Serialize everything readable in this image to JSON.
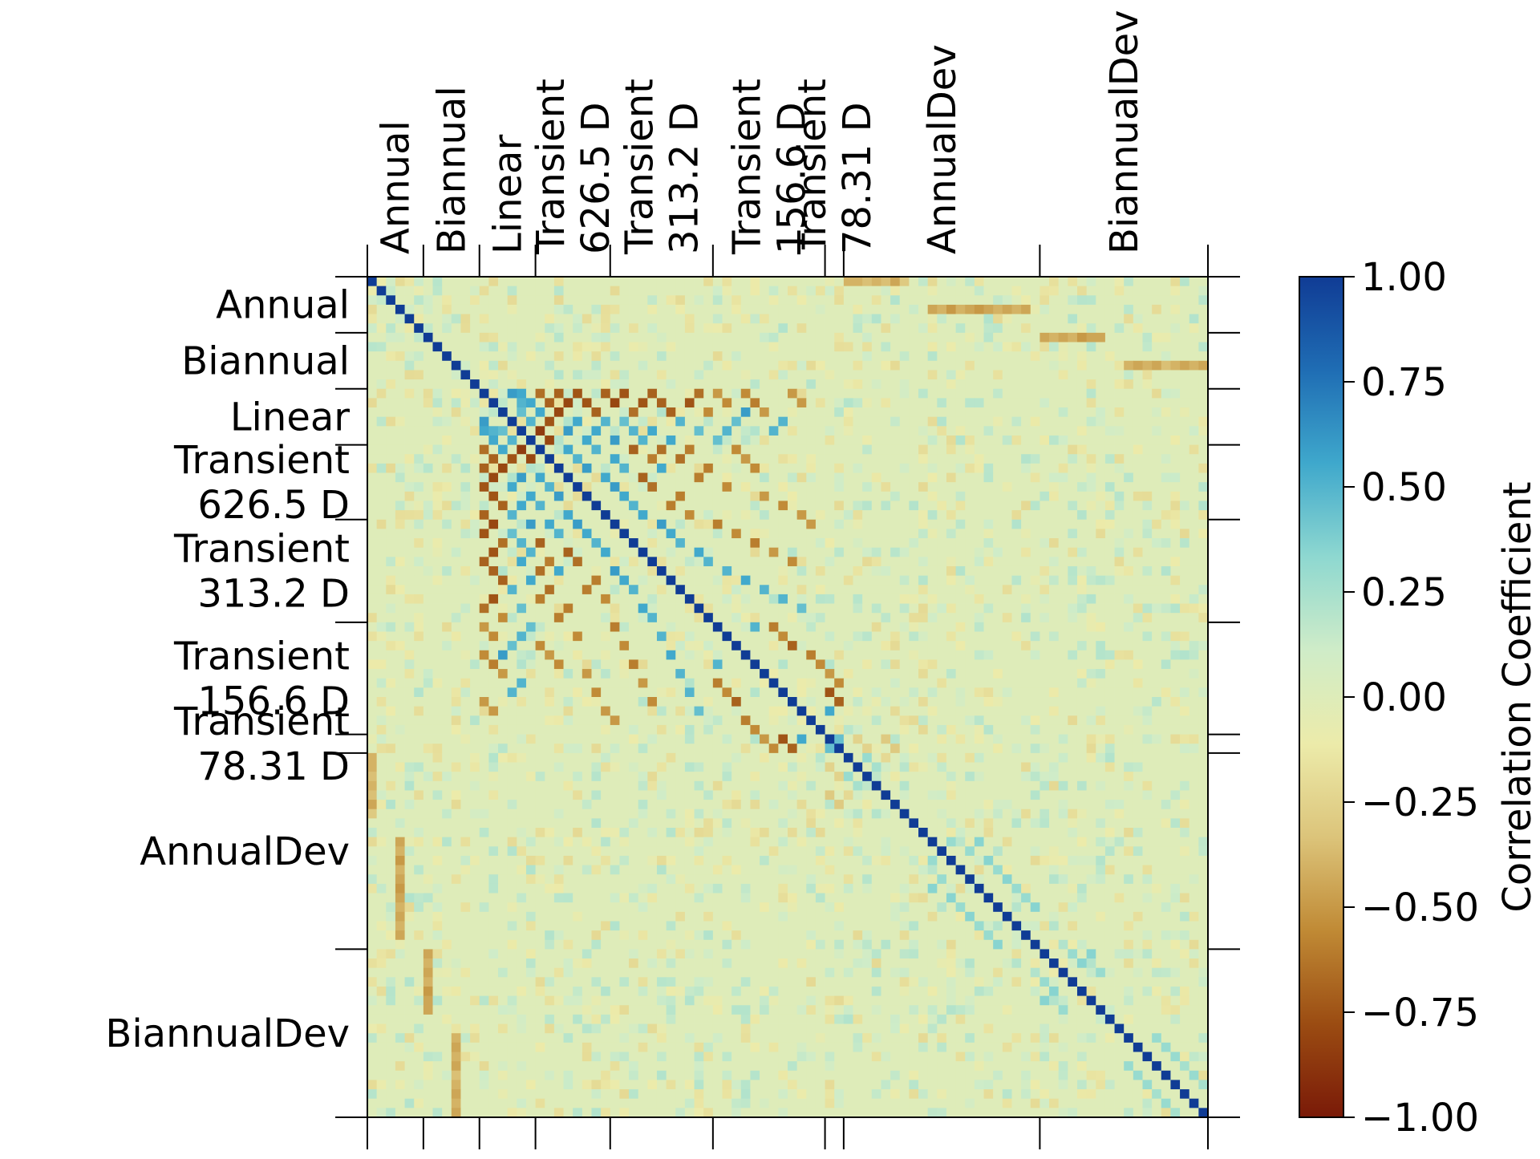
{
  "chart_data": {
    "type": "heatmap",
    "title": "",
    "n": 90,
    "groups": [
      {
        "label": "Annual",
        "start": 0,
        "end": 6
      },
      {
        "label": "Biannual",
        "start": 6,
        "end": 12
      },
      {
        "label": "Linear",
        "start": 12,
        "end": 18
      },
      {
        "label": "Transient\n626.5 D",
        "start": 18,
        "end": 26
      },
      {
        "label": "Transient\n313.2 D",
        "start": 26,
        "end": 37
      },
      {
        "label": "Transient\n156.6 D",
        "start": 37,
        "end": 49
      },
      {
        "label": "Transient\n78.31 D",
        "start": 49,
        "end": 51
      },
      {
        "label": "AnnualDev",
        "start": 51,
        "end": 72
      },
      {
        "label": "BiannualDev",
        "start": 72,
        "end": 90
      }
    ],
    "colorbar": {
      "label": "Correlation Coefficient",
      "min": -1.0,
      "max": 1.0,
      "ticks": [
        1.0,
        0.75,
        0.5,
        0.25,
        0.0,
        -0.25,
        -0.5,
        -0.75,
        -1.0
      ],
      "tick_labels": [
        "1.00",
        "0.75",
        "0.50",
        "0.25",
        "0.00",
        "−0.25",
        "−0.50",
        "−0.75",
        "−1.00"
      ]
    },
    "colormap": [
      "#7a1a08",
      "#9b4c12",
      "#c08a35",
      "#dcc47a",
      "#ecebaa",
      "#cfecc8",
      "#8ed8d0",
      "#3fa8cc",
      "#1f6db4",
      "#103c95"
    ],
    "diagonal": 1.0,
    "strong_pairs": [
      {
        "i": 0,
        "j": 51,
        "value": -0.4
      },
      {
        "i": 0,
        "j": 52,
        "value": -0.4
      },
      {
        "i": 0,
        "j": 53,
        "value": -0.35
      },
      {
        "i": 0,
        "j": 54,
        "value": -0.4
      },
      {
        "i": 0,
        "j": 55,
        "value": -0.35
      },
      {
        "i": 0,
        "j": 56,
        "value": -0.45
      },
      {
        "i": 0,
        "j": 57,
        "value": -0.3
      },
      {
        "i": 3,
        "j": 60,
        "value": -0.45
      },
      {
        "i": 3,
        "j": 61,
        "value": -0.4
      },
      {
        "i": 3,
        "j": 62,
        "value": -0.5
      },
      {
        "i": 3,
        "j": 63,
        "value": -0.4
      },
      {
        "i": 3,
        "j": 64,
        "value": -0.45
      },
      {
        "i": 3,
        "j": 65,
        "value": -0.5
      },
      {
        "i": 3,
        "j": 66,
        "value": -0.45
      },
      {
        "i": 3,
        "j": 67,
        "value": -0.4
      },
      {
        "i": 3,
        "j": 68,
        "value": -0.45
      },
      {
        "i": 3,
        "j": 69,
        "value": -0.4
      },
      {
        "i": 3,
        "j": 70,
        "value": -0.45
      },
      {
        "i": 6,
        "j": 72,
        "value": -0.45
      },
      {
        "i": 6,
        "j": 73,
        "value": -0.4
      },
      {
        "i": 6,
        "j": 74,
        "value": -0.45
      },
      {
        "i": 6,
        "j": 75,
        "value": -0.4
      },
      {
        "i": 6,
        "j": 76,
        "value": -0.5
      },
      {
        "i": 6,
        "j": 77,
        "value": -0.45
      },
      {
        "i": 6,
        "j": 78,
        "value": -0.45
      },
      {
        "i": 9,
        "j": 81,
        "value": -0.4
      },
      {
        "i": 9,
        "j": 82,
        "value": -0.45
      },
      {
        "i": 9,
        "j": 83,
        "value": -0.4
      },
      {
        "i": 9,
        "j": 84,
        "value": -0.45
      },
      {
        "i": 9,
        "j": 85,
        "value": -0.35
      },
      {
        "i": 9,
        "j": 86,
        "value": -0.4
      },
      {
        "i": 9,
        "j": 87,
        "value": -0.45
      },
      {
        "i": 9,
        "j": 88,
        "value": -0.4
      },
      {
        "i": 9,
        "j": 89,
        "value": -0.45
      },
      {
        "i": 12,
        "j": 15,
        "value": 0.6
      },
      {
        "i": 12,
        "j": 16,
        "value": 0.55
      },
      {
        "i": 12,
        "j": 18,
        "value": -0.65
      },
      {
        "i": 12,
        "j": 20,
        "value": -0.7
      },
      {
        "i": 12,
        "j": 22,
        "value": -0.75
      },
      {
        "i": 12,
        "j": 25,
        "value": -0.7
      },
      {
        "i": 12,
        "j": 27,
        "value": -0.75
      },
      {
        "i": 12,
        "j": 30,
        "value": -0.7
      },
      {
        "i": 12,
        "j": 35,
        "value": -0.65
      },
      {
        "i": 12,
        "j": 37,
        "value": -0.5
      },
      {
        "i": 12,
        "j": 40,
        "value": -0.55
      },
      {
        "i": 12,
        "j": 45,
        "value": -0.5
      },
      {
        "i": 13,
        "j": 16,
        "value": 0.5
      },
      {
        "i": 13,
        "j": 17,
        "value": 0.55
      },
      {
        "i": 13,
        "j": 19,
        "value": -0.7
      },
      {
        "i": 13,
        "j": 21,
        "value": -0.8
      },
      {
        "i": 13,
        "j": 23,
        "value": -0.75
      },
      {
        "i": 13,
        "j": 26,
        "value": -0.8
      },
      {
        "i": 13,
        "j": 29,
        "value": -0.75
      },
      {
        "i": 13,
        "j": 31,
        "value": -0.7
      },
      {
        "i": 13,
        "j": 34,
        "value": -0.75
      },
      {
        "i": 13,
        "j": 38,
        "value": -0.55
      },
      {
        "i": 13,
        "j": 41,
        "value": -0.6
      },
      {
        "i": 13,
        "j": 46,
        "value": -0.5
      },
      {
        "i": 14,
        "j": 16,
        "value": 0.45
      },
      {
        "i": 14,
        "j": 18,
        "value": 0.55
      },
      {
        "i": 14,
        "j": 20,
        "value": -0.8
      },
      {
        "i": 14,
        "j": 24,
        "value": -0.7
      },
      {
        "i": 14,
        "j": 28,
        "value": -0.65
      },
      {
        "i": 14,
        "j": 32,
        "value": -0.7
      },
      {
        "i": 14,
        "j": 36,
        "value": -0.55
      },
      {
        "i": 14,
        "j": 40,
        "value": 0.6
      },
      {
        "i": 14,
        "j": 42,
        "value": -0.5
      },
      {
        "i": 15,
        "j": 17,
        "value": 0.5
      },
      {
        "i": 15,
        "j": 19,
        "value": -0.75
      },
      {
        "i": 15,
        "j": 22,
        "value": 0.55
      },
      {
        "i": 15,
        "j": 25,
        "value": 0.5
      },
      {
        "i": 15,
        "j": 27,
        "value": 0.45
      },
      {
        "i": 15,
        "j": 33,
        "value": 0.5
      },
      {
        "i": 15,
        "j": 39,
        "value": 0.45
      },
      {
        "i": 15,
        "j": 44,
        "value": 0.5
      },
      {
        "i": 16,
        "j": 18,
        "value": -0.85
      },
      {
        "i": 16,
        "j": 21,
        "value": 0.6
      },
      {
        "i": 16,
        "j": 24,
        "value": 0.55
      },
      {
        "i": 16,
        "j": 28,
        "value": 0.5
      },
      {
        "i": 16,
        "j": 30,
        "value": 0.55
      },
      {
        "i": 16,
        "j": 35,
        "value": 0.45
      },
      {
        "i": 16,
        "j": 38,
        "value": 0.5
      },
      {
        "i": 16,
        "j": 43,
        "value": 0.5
      },
      {
        "i": 17,
        "j": 19,
        "value": -0.8
      },
      {
        "i": 17,
        "j": 23,
        "value": 0.55
      },
      {
        "i": 17,
        "j": 26,
        "value": 0.6
      },
      {
        "i": 17,
        "j": 29,
        "value": 0.5
      },
      {
        "i": 17,
        "j": 32,
        "value": 0.55
      },
      {
        "i": 17,
        "j": 37,
        "value": 0.45
      },
      {
        "i": 18,
        "j": 21,
        "value": 0.55
      },
      {
        "i": 18,
        "j": 24,
        "value": 0.5
      },
      {
        "i": 18,
        "j": 28,
        "value": -0.7
      },
      {
        "i": 18,
        "j": 31,
        "value": -0.65
      },
      {
        "i": 18,
        "j": 34,
        "value": -0.6
      },
      {
        "i": 18,
        "j": 39,
        "value": -0.55
      },
      {
        "i": 19,
        "j": 22,
        "value": 0.5
      },
      {
        "i": 19,
        "j": 26,
        "value": 0.55
      },
      {
        "i": 19,
        "j": 30,
        "value": -0.6
      },
      {
        "i": 19,
        "j": 33,
        "value": -0.65
      },
      {
        "i": 19,
        "j": 40,
        "value": -0.5
      },
      {
        "i": 20,
        "j": 23,
        "value": 0.6
      },
      {
        "i": 20,
        "j": 27,
        "value": 0.5
      },
      {
        "i": 20,
        "j": 31,
        "value": 0.55
      },
      {
        "i": 20,
        "j": 36,
        "value": -0.6
      },
      {
        "i": 20,
        "j": 41,
        "value": -0.55
      },
      {
        "i": 21,
        "j": 25,
        "value": 0.55
      },
      {
        "i": 21,
        "j": 29,
        "value": -0.7
      },
      {
        "i": 21,
        "j": 35,
        "value": -0.6
      },
      {
        "i": 22,
        "j": 26,
        "value": 0.6
      },
      {
        "i": 22,
        "j": 30,
        "value": -0.65
      },
      {
        "i": 22,
        "j": 38,
        "value": -0.55
      },
      {
        "i": 23,
        "j": 27,
        "value": 0.55
      },
      {
        "i": 23,
        "j": 33,
        "value": -0.6
      },
      {
        "i": 23,
        "j": 42,
        "value": -0.5
      },
      {
        "i": 24,
        "j": 28,
        "value": 0.5
      },
      {
        "i": 24,
        "j": 32,
        "value": -0.6
      },
      {
        "i": 24,
        "j": 44,
        "value": -0.55
      },
      {
        "i": 25,
        "j": 29,
        "value": 0.55
      },
      {
        "i": 25,
        "j": 34,
        "value": -0.55
      },
      {
        "i": 25,
        "j": 46,
        "value": -0.5
      },
      {
        "i": 26,
        "j": 31,
        "value": 0.6
      },
      {
        "i": 26,
        "j": 37,
        "value": -0.6
      },
      {
        "i": 26,
        "j": 47,
        "value": -0.5
      },
      {
        "i": 27,
        "j": 32,
        "value": 0.55
      },
      {
        "i": 27,
        "j": 39,
        "value": -0.55
      },
      {
        "i": 28,
        "j": 33,
        "value": 0.5
      },
      {
        "i": 28,
        "j": 41,
        "value": -0.6
      },
      {
        "i": 29,
        "j": 35,
        "value": 0.55
      },
      {
        "i": 29,
        "j": 43,
        "value": -0.5
      },
      {
        "i": 30,
        "j": 36,
        "value": 0.5
      },
      {
        "i": 30,
        "j": 45,
        "value": -0.55
      },
      {
        "i": 31,
        "j": 38,
        "value": 0.5
      },
      {
        "i": 32,
        "j": 40,
        "value": 0.55
      },
      {
        "i": 33,
        "j": 42,
        "value": 0.5
      },
      {
        "i": 34,
        "j": 44,
        "value": 0.5
      },
      {
        "i": 35,
        "j": 46,
        "value": 0.45
      },
      {
        "i": 37,
        "j": 41,
        "value": 0.5
      },
      {
        "i": 37,
        "j": 43,
        "value": -0.6
      },
      {
        "i": 38,
        "j": 44,
        "value": -0.55
      },
      {
        "i": 39,
        "j": 45,
        "value": -0.7
      },
      {
        "i": 40,
        "j": 47,
        "value": -0.6
      },
      {
        "i": 41,
        "j": 48,
        "value": -0.55
      },
      {
        "i": 42,
        "j": 49,
        "value": -0.5
      },
      {
        "i": 43,
        "j": 50,
        "value": -0.55
      },
      {
        "i": 44,
        "j": 49,
        "value": -0.75
      },
      {
        "i": 45,
        "j": 50,
        "value": -0.7
      },
      {
        "i": 46,
        "j": 49,
        "value": 0.55
      },
      {
        "i": 49,
        "j": 50,
        "value": 0.45
      },
      {
        "i": 49,
        "j": 52,
        "value": -0.25
      },
      {
        "i": 49,
        "j": 55,
        "value": -0.3
      },
      {
        "i": 50,
        "j": 53,
        "value": -0.25
      },
      {
        "i": 50,
        "j": 56,
        "value": -0.3
      },
      {
        "i": 51,
        "j": 53,
        "value": 0.3
      },
      {
        "i": 52,
        "j": 54,
        "value": 0.25
      },
      {
        "i": 60,
        "j": 62,
        "value": 0.3
      },
      {
        "i": 60,
        "j": 65,
        "value": 0.35
      },
      {
        "i": 61,
        "j": 64,
        "value": 0.3
      },
      {
        "i": 62,
        "j": 66,
        "value": 0.35
      },
      {
        "i": 63,
        "j": 67,
        "value": 0.3
      },
      {
        "i": 64,
        "j": 68,
        "value": 0.35
      },
      {
        "i": 65,
        "j": 69,
        "value": 0.3
      },
      {
        "i": 66,
        "j": 70,
        "value": 0.3
      },
      {
        "i": 67,
        "j": 71,
        "value": 0.35
      },
      {
        "i": 72,
        "j": 75,
        "value": 0.3
      },
      {
        "i": 72,
        "j": 77,
        "value": 0.35
      },
      {
        "i": 73,
        "j": 76,
        "value": 0.35
      },
      {
        "i": 74,
        "j": 78,
        "value": 0.3
      },
      {
        "i": 81,
        "j": 84,
        "value": 0.3
      },
      {
        "i": 82,
        "j": 85,
        "value": 0.3
      },
      {
        "i": 83,
        "j": 86,
        "value": 0.3
      },
      {
        "i": 84,
        "j": 87,
        "value": 0.25
      },
      {
        "i": 85,
        "j": 88,
        "value": 0.3
      },
      {
        "i": 86,
        "j": 89,
        "value": 0.25
      }
    ],
    "xlabel": "",
    "ylabel": ""
  }
}
